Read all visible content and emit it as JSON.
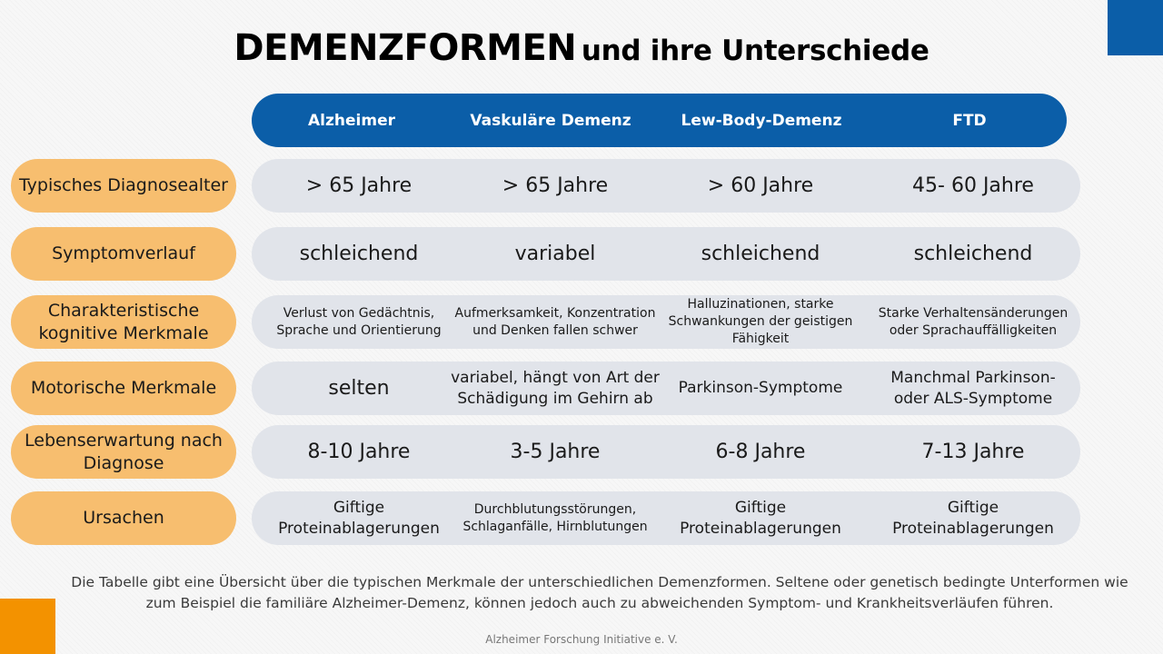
{
  "title": {
    "main": "DEMENZFORMEN",
    "sub": "und ihre Unterschiede"
  },
  "colors": {
    "header_blue": "#0b5ea8",
    "label_orange": "#f7be6f",
    "row_gray": "#e1e4ea",
    "accent_orange": "#f39200"
  },
  "columns": [
    "Alzheimer",
    "Vaskuläre Demenz",
    "Lew-Body-Demenz",
    "FTD"
  ],
  "rows": [
    {
      "label": "Typisches Diagnosealter",
      "cells": [
        "> 65 Jahre",
        "> 65 Jahre",
        "> 60 Jahre",
        "45- 60 Jahre"
      ]
    },
    {
      "label": "Symptomverlauf",
      "cells": [
        "schleichend",
        "variabel",
        "schleichend",
        "schleichend"
      ]
    },
    {
      "label": "Charakteristische kognitive Merkmale",
      "cells": [
        "Verlust von Gedächtnis, Sprache und Orientierung",
        "Aufmerksamkeit, Konzentration und Denken fallen schwer",
        "Halluzinationen, starke Schwankungen der geistigen Fähigkeit",
        "Starke Verhaltensänderungen oder Sprachauffälligkeiten"
      ]
    },
    {
      "label": "Motorische Merkmale",
      "cells": [
        "selten",
        "variabel, hängt von Art der Schädigung im Gehirn ab",
        "Parkinson-Symptome",
        "Manchmal Parkinson- oder ALS-Symptome"
      ]
    },
    {
      "label": "Lebenserwartung nach Diagnose",
      "cells": [
        "8-10 Jahre",
        "3-5 Jahre",
        "6-8 Jahre",
        "7-13 Jahre"
      ]
    },
    {
      "label": "Ursachen",
      "cells": [
        "Giftige Proteinablagerungen",
        "Durchblutungsstörungen, Schlaganfälle, Hirnblutungen",
        "Giftige Proteinablagerungen",
        "Giftige Proteinablagerungen"
      ]
    }
  ],
  "note": "Die Tabelle gibt eine Übersicht über die typischen Merkmale der unterschiedlichen Demenzformen. Seltene oder genetisch bedingte Unterformen wie zum Beispiel die familiäre Alzheimer-Demenz, können jedoch auch zu abweichenden Symptom- und Krankheitsverläufen führen.",
  "footer": "Alzheimer Forschung Initiative e. V."
}
